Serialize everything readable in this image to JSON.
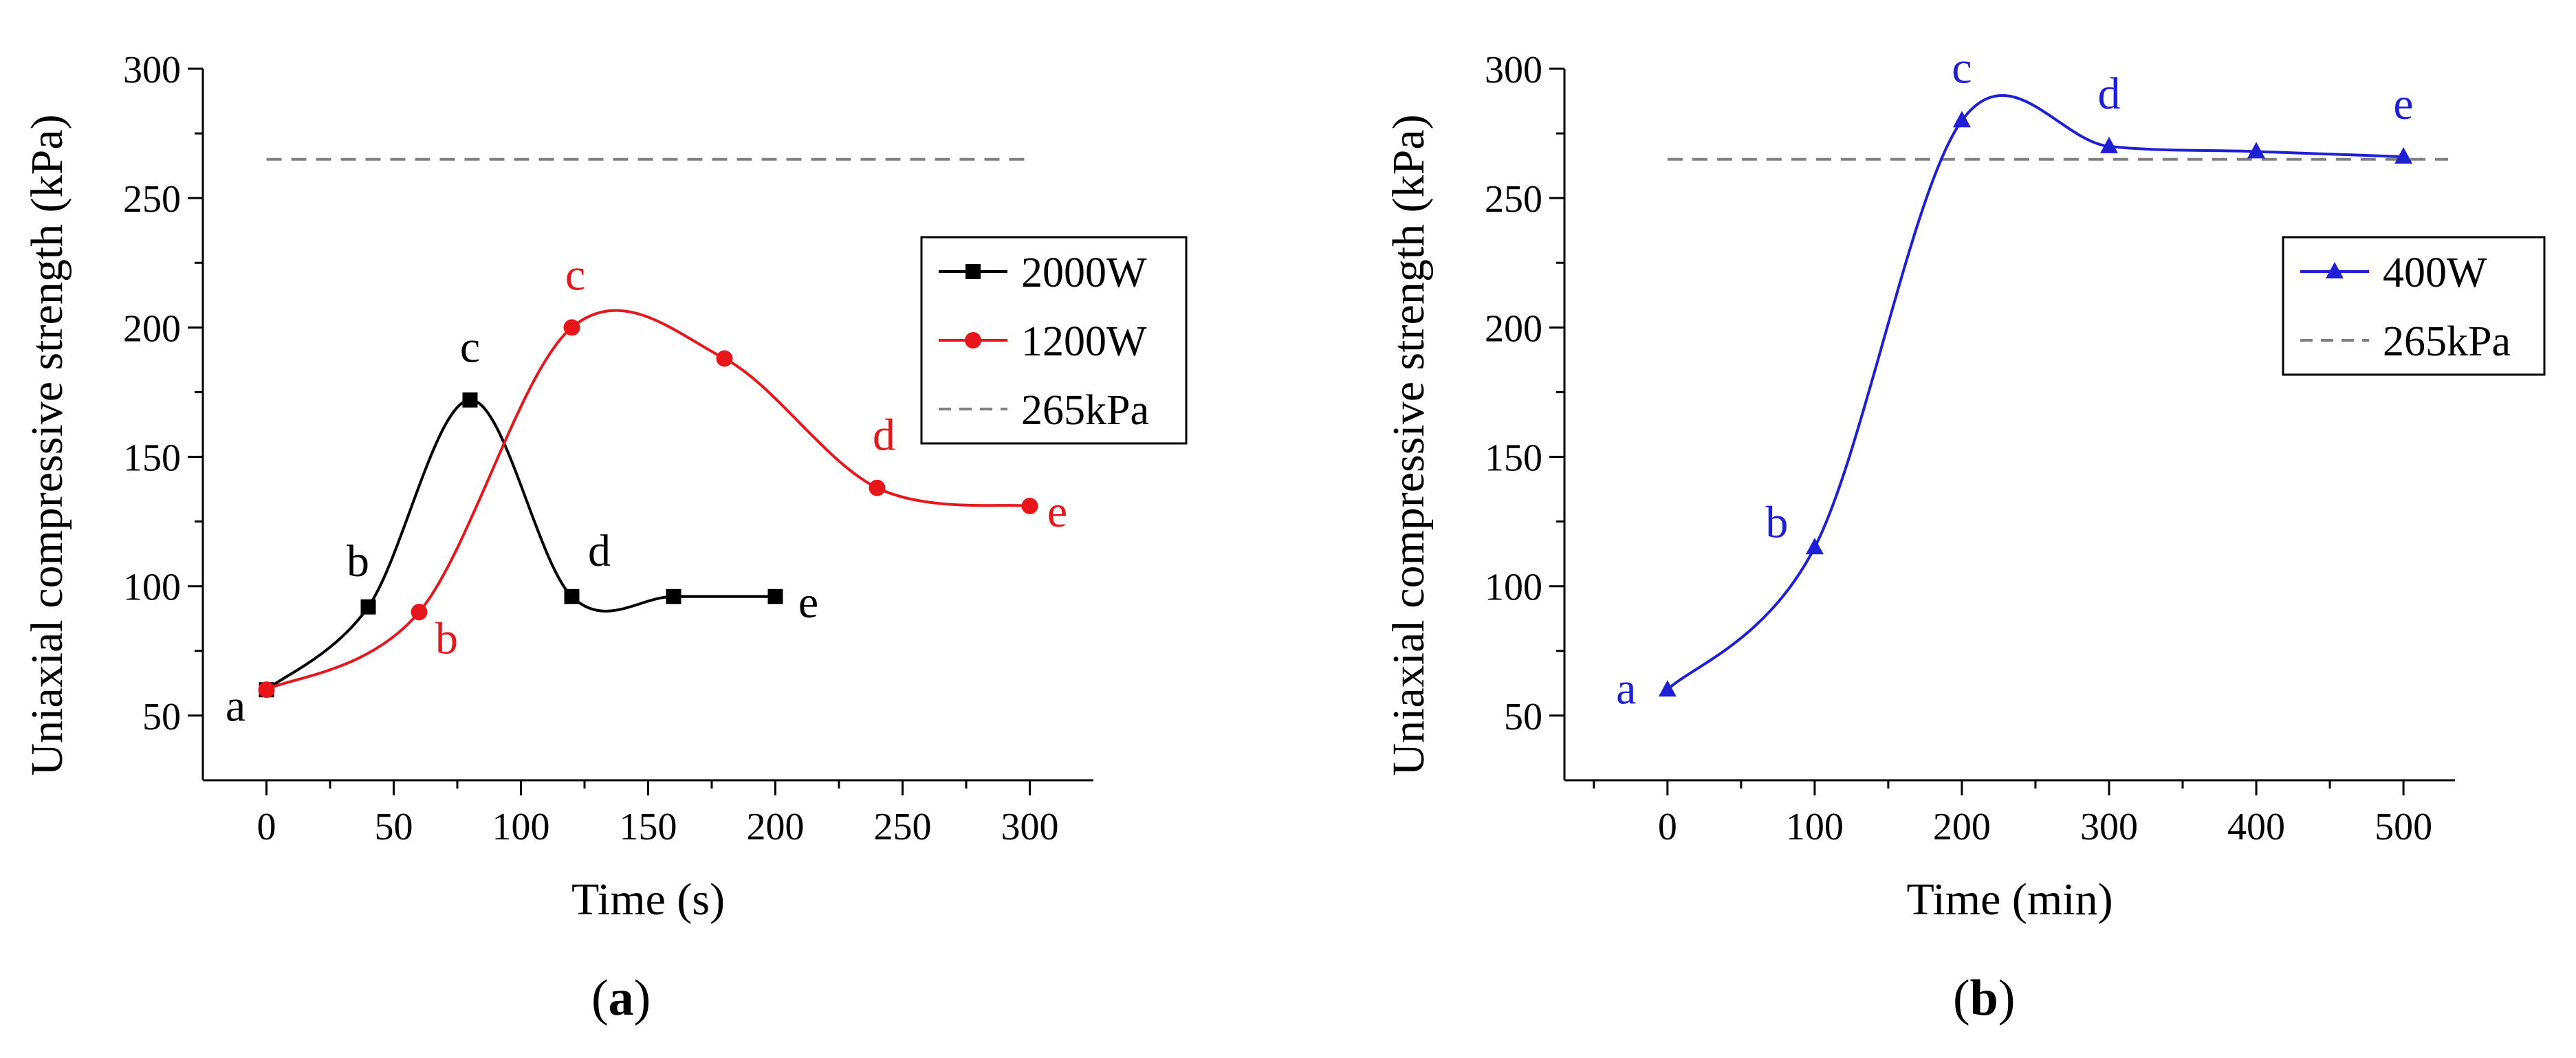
{
  "chart_data": [
    {
      "type": "line",
      "panel": "(a)",
      "panel_letter": "a",
      "xlabel": "Time (s)",
      "ylabel": "Uniaxial compressive strength (kPa)",
      "xlim": [
        -25,
        325
      ],
      "ylim": [
        25,
        300
      ],
      "xticks": [
        0,
        50,
        100,
        150,
        200,
        250,
        300
      ],
      "yticks": [
        50,
        100,
        150,
        200,
        250,
        300
      ],
      "legend_position": "right",
      "series": [
        {
          "name": "2000W",
          "color": "#000000",
          "marker": "square",
          "x": [
            0,
            40,
            80,
            120,
            160,
            200
          ],
          "y": [
            60,
            92,
            172,
            96,
            96,
            96
          ],
          "point_labels": [
            "a",
            "b",
            "c",
            "d",
            "",
            "e"
          ]
        },
        {
          "name": "1200W",
          "color": "#e8161b",
          "marker": "circle",
          "x": [
            0,
            60,
            120,
            180,
            240,
            300
          ],
          "y": [
            60,
            90,
            200,
            188,
            138,
            131
          ],
          "point_labels": [
            "",
            "b",
            "c",
            "",
            "d",
            "e"
          ]
        }
      ],
      "reference_line": {
        "name": "265kPa",
        "y": 265,
        "color": "#808080",
        "style": "dashed"
      }
    },
    {
      "type": "line",
      "panel": "(b)",
      "panel_letter": "b",
      "xlabel": "Time (min)",
      "ylabel": "Uniaxial compressive strength (kPa)",
      "xlim": [
        -70,
        535
      ],
      "ylim": [
        25,
        300
      ],
      "xticks": [
        0,
        100,
        200,
        300,
        400,
        500
      ],
      "yticks": [
        50,
        100,
        150,
        200,
        250,
        300
      ],
      "legend_position": "right",
      "series": [
        {
          "name": "400W",
          "color": "#1f1fd6",
          "marker": "triangle",
          "x": [
            0,
            100,
            200,
            300,
            400,
            500
          ],
          "y": [
            60,
            115,
            280,
            270,
            268,
            266
          ],
          "point_labels": [
            "a",
            "b",
            "c",
            "d",
            "",
            "e"
          ]
        }
      ],
      "reference_line": {
        "name": "265kPa",
        "y": 265,
        "color": "#808080",
        "style": "dashed"
      }
    }
  ]
}
